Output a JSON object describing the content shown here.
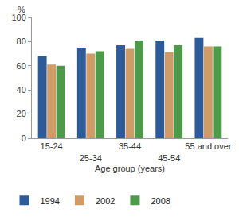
{
  "chart_data": {
    "type": "bar",
    "x_label": "Age group (years)",
    "y_label": "%",
    "categories": [
      "15-24",
      "25-34",
      "35-44",
      "45-54",
      "55 and over"
    ],
    "series": [
      {
        "name": "1994",
        "color": "#2d5b9a",
        "values": [
          68,
          75,
          77,
          81,
          83
        ]
      },
      {
        "name": "2002",
        "color": "#cf9c68",
        "values": [
          61,
          70,
          74,
          71,
          76
        ]
      },
      {
        "name": "2008",
        "color": "#4e9a4a",
        "values": [
          60,
          72,
          81,
          77,
          76
        ]
      }
    ],
    "ylim": [
      0,
      100
    ],
    "yticks": [
      0,
      20,
      40,
      60,
      80,
      100
    ],
    "grid": false,
    "legend": "bottom"
  }
}
